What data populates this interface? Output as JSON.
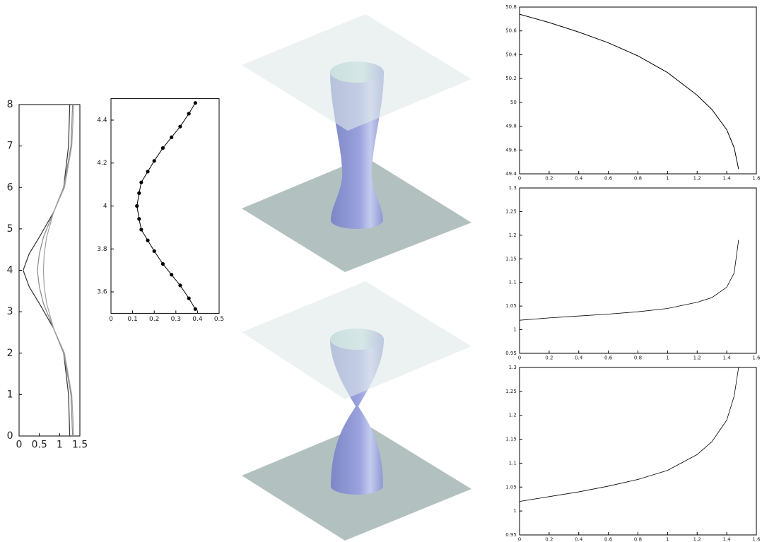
{
  "chart_data": [
    {
      "type": "line",
      "xlim": [
        0,
        1.5
      ],
      "xticks": [
        0,
        0.5,
        1,
        1.5
      ],
      "ylim": [
        0,
        8
      ],
      "yticks": [
        0,
        1,
        2,
        3,
        4,
        5,
        6,
        7,
        8
      ],
      "series": [
        {
          "color": "#333333",
          "x": [
            1.25,
            1.22,
            1.1,
            0.85,
            0.5,
            0.25,
            0.1,
            0.25,
            0.5,
            0.85,
            1.1,
            1.22,
            1.25
          ],
          "values": [
            0,
            1,
            2,
            2.6,
            3.2,
            3.6,
            4,
            4.4,
            4.8,
            5.4,
            6,
            7,
            8
          ]
        },
        {
          "color": "#888888",
          "x": [
            1.32,
            1.28,
            1.1,
            0.85,
            0.6,
            0.5,
            0.45,
            0.5,
            0.6,
            0.85,
            1.1,
            1.28,
            1.32
          ],
          "values": [
            0,
            1,
            2,
            2.6,
            3.2,
            3.6,
            4,
            4.4,
            4.8,
            5.4,
            6,
            7,
            8
          ]
        },
        {
          "color": "#a0a0a0",
          "x": [
            1.35,
            1.3,
            1.12,
            0.85,
            0.68,
            0.62,
            0.6,
            0.62,
            0.68,
            0.85,
            1.12,
            1.3,
            1.35
          ],
          "values": [
            0,
            1,
            2,
            2.6,
            3.2,
            3.6,
            4,
            4.4,
            4.8,
            5.4,
            6,
            7,
            8
          ]
        }
      ]
    },
    {
      "type": "scatter",
      "xlim": [
        0,
        0.5
      ],
      "xticks": [
        0,
        0.1,
        0.2,
        0.3,
        0.4,
        0.5
      ],
      "ylim": [
        3.5,
        4.5
      ],
      "yticks": [
        3.6,
        3.8,
        4,
        4.2,
        4.4
      ],
      "series": [
        {
          "color": "#000000",
          "x": [
            0.39,
            0.36,
            0.32,
            0.28,
            0.24,
            0.2,
            0.17,
            0.14,
            0.13,
            0.12,
            0.13,
            0.14,
            0.17,
            0.2,
            0.24,
            0.28,
            0.32,
            0.36,
            0.39
          ],
          "values": [
            3.52,
            3.57,
            3.63,
            3.68,
            3.73,
            3.79,
            3.84,
            3.89,
            3.94,
            4.0,
            4.06,
            4.11,
            4.16,
            4.21,
            4.27,
            4.32,
            4.37,
            4.43,
            4.48
          ]
        }
      ]
    },
    {
      "type": "line",
      "xlim": [
        0,
        1.6
      ],
      "xticks": [
        0,
        0.2,
        0.4,
        0.6,
        0.8,
        1,
        1.2,
        1.4,
        1.6
      ],
      "ylim": [
        49.4,
        50.8
      ],
      "yticks": [
        49.4,
        49.6,
        49.8,
        50,
        50.2,
        50.4,
        50.6,
        50.8
      ],
      "series": [
        {
          "color": "#000000",
          "x": [
            0,
            0.2,
            0.4,
            0.6,
            0.8,
            1.0,
            1.2,
            1.3,
            1.4,
            1.45,
            1.48
          ],
          "values": [
            50.74,
            50.67,
            50.59,
            50.5,
            50.39,
            50.25,
            50.06,
            49.94,
            49.77,
            49.62,
            49.44
          ]
        }
      ]
    },
    {
      "type": "line",
      "xlim": [
        0,
        1.6
      ],
      "xticks": [
        0,
        0.2,
        0.4,
        0.6,
        0.8,
        1,
        1.2,
        1.4,
        1.6
      ],
      "ylim": [
        0.95,
        1.3
      ],
      "yticks": [
        0.95,
        1,
        1.05,
        1.1,
        1.15,
        1.2,
        1.25,
        1.3
      ],
      "series": [
        {
          "color": "#000000",
          "x": [
            0,
            0.2,
            0.4,
            0.6,
            0.8,
            1.0,
            1.2,
            1.3,
            1.4,
            1.45,
            1.48
          ],
          "values": [
            1.02,
            1.025,
            1.029,
            1.033,
            1.038,
            1.045,
            1.058,
            1.068,
            1.09,
            1.12,
            1.19
          ]
        }
      ]
    },
    {
      "type": "line",
      "xlim": [
        0,
        1.6
      ],
      "xticks": [
        0,
        0.2,
        0.4,
        0.6,
        0.8,
        1,
        1.2,
        1.4,
        1.6
      ],
      "ylim": [
        0.95,
        1.3
      ],
      "yticks": [
        0.95,
        1,
        1.05,
        1.1,
        1.15,
        1.2,
        1.25,
        1.3
      ],
      "series": [
        {
          "color": "#000000",
          "x": [
            0,
            0.2,
            0.4,
            0.6,
            0.8,
            1.0,
            1.2,
            1.3,
            1.4,
            1.45,
            1.48
          ],
          "values": [
            1.02,
            1.03,
            1.04,
            1.052,
            1.066,
            1.085,
            1.118,
            1.145,
            1.19,
            1.24,
            1.3
          ]
        }
      ]
    }
  ]
}
